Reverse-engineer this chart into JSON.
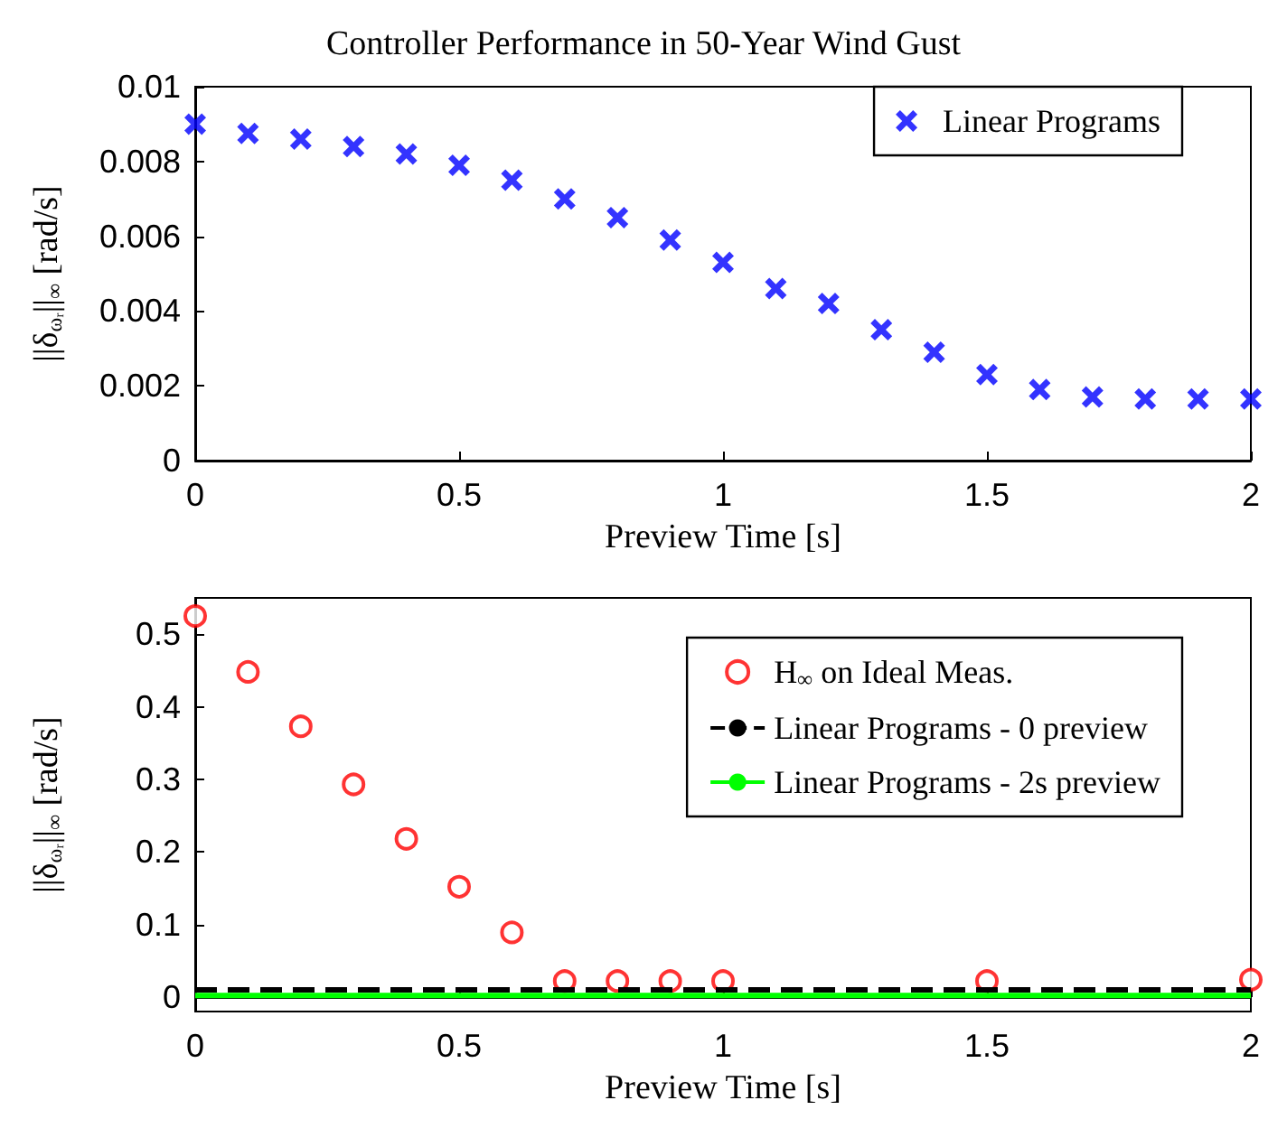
{
  "chart_data": [
    {
      "type": "scatter",
      "title": "Controller Performance in 50-Year Wind Gust",
      "xlabel": "Preview Time [s]",
      "ylabel": "||δ$_{ωᵣ}$||$_{∞}$ [rad/s]",
      "x": [
        0,
        0.1,
        0.2,
        0.3,
        0.4,
        0.5,
        0.6,
        0.7,
        0.8,
        0.9,
        1.0,
        1.1,
        1.2,
        1.3,
        1.4,
        1.5,
        1.6,
        1.7,
        1.8,
        1.9,
        2.0
      ],
      "series": [
        {
          "name": "Linear Programs",
          "color": "#0000ff",
          "marker": "cross",
          "values": [
            0.009,
            0.00875,
            0.0086,
            0.0084,
            0.0082,
            0.0079,
            0.0075,
            0.007,
            0.0065,
            0.0059,
            0.0053,
            0.0046,
            0.0042,
            0.0035,
            0.0029,
            0.0023,
            0.0019,
            0.0017,
            0.00165,
            0.00165,
            0.00165
          ]
        }
      ],
      "xlim": [
        0,
        2
      ],
      "xticks": [
        0,
        0.5,
        1,
        1.5,
        2
      ],
      "ylim": [
        0,
        0.01
      ],
      "yticks": [
        0,
        0.002,
        0.004,
        0.006,
        0.008,
        0.01
      ],
      "grid": false,
      "legend": "top right"
    },
    {
      "type": "scatter",
      "xlabel": "Preview Time [s]",
      "ylabel": "||δ$_{ωᵣ}$||$_{∞}$ [rad/s]",
      "series": [
        {
          "name": "H$_{∞}$ on Ideal Meas.",
          "color": "#ff0000",
          "marker": "circle",
          "x": [
            0,
            0.1,
            0.2,
            0.3,
            0.4,
            0.5,
            0.6,
            0.7,
            0.8,
            0.9,
            1.0,
            1.5,
            2.0
          ],
          "values": [
            0.525,
            0.448,
            0.373,
            0.293,
            0.218,
            0.152,
            0.089,
            0.022,
            0.022,
            0.022,
            0.022,
            0.022,
            0.024
          ]
        },
        {
          "name": "Linear Programs - 0 preview",
          "type": "line",
          "line_style": "dashed",
          "color": "#000000",
          "x": [
            0,
            2
          ],
          "values": [
            0.01,
            0.01
          ]
        },
        {
          "name": "Linear Programs - 2s preview",
          "type": "line",
          "line_style": "solid",
          "color": "#00ff00",
          "x": [
            0,
            2
          ],
          "values": [
            0.002,
            0.002
          ]
        }
      ],
      "xlim": [
        0,
        2
      ],
      "xticks": [
        0,
        0.5,
        1,
        1.5,
        2
      ],
      "ylim": [
        -0.02,
        0.55
      ],
      "yticks": [
        0,
        0.1,
        0.2,
        0.3,
        0.4,
        0.5
      ],
      "grid": false,
      "legend": "top right"
    }
  ]
}
